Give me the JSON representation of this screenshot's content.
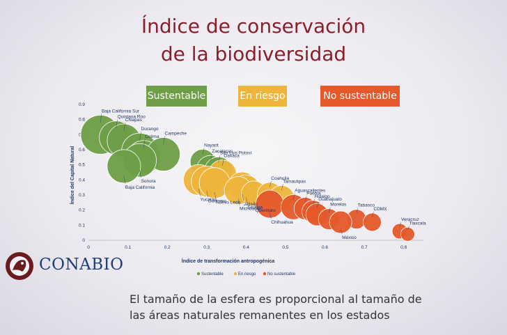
{
  "title_line1": "Índice de conservación",
  "title_line2": "de la biodiversidad",
  "categories": {
    "sustentable": "Sustentable",
    "en_riesgo": "En riesgo",
    "no_sustentable": "No sustentable"
  },
  "colors": {
    "sustentable": "#6e9e47",
    "en_riesgo": "#efb53b",
    "no_sustentable": "#e5592a",
    "title": "#8a1f2c"
  },
  "logo_text": "CONABIO",
  "caption_line1": "El tamaño de la esfera es proporcional al tamaño de",
  "caption_line2": "las áreas naturales remanentes en los estados",
  "chart_data": {
    "type": "scatter",
    "xlabel": "Índice de transformación antropogénica",
    "ylabel": "Índice del Capital Natural",
    "xlim": [
      0,
      0.85
    ],
    "ylim": [
      0,
      0.9
    ],
    "x_ticks": [
      "0",
      "0.1",
      "0.2",
      "0.3",
      "0.4",
      "0.5",
      "0.6",
      "0.7",
      "0.8"
    ],
    "y_ticks": [
      "0",
      "0.1",
      "0.2",
      "0.3",
      "0.4",
      "0.5",
      "0.6",
      "0.7",
      "0.8",
      "0.9"
    ],
    "legend": [
      "Sustentable",
      "En riesgo",
      "No sustentable"
    ],
    "legend_position": "bottom",
    "points": [
      {
        "label": "Baja California Sur",
        "x": 0.03,
        "y": 0.7,
        "size": 28,
        "category": "sustentable"
      },
      {
        "label": "Quintana Roo",
        "x": 0.07,
        "y": 0.68,
        "size": 24,
        "category": "sustentable"
      },
      {
        "label": "Chiapas",
        "x": 0.09,
        "y": 0.66,
        "size": 24,
        "category": "sustentable"
      },
      {
        "label": "Durango",
        "x": 0.13,
        "y": 0.59,
        "size": 26,
        "category": "sustentable"
      },
      {
        "label": "Colima",
        "x": 0.14,
        "y": 0.55,
        "size": 24,
        "category": "sustentable"
      },
      {
        "label": "Campeche",
        "x": 0.19,
        "y": 0.57,
        "size": 24,
        "category": "sustentable"
      },
      {
        "label": "Sonora",
        "x": 0.13,
        "y": 0.53,
        "size": 24,
        "category": "sustentable"
      },
      {
        "label": "Baja California",
        "x": 0.09,
        "y": 0.49,
        "size": 24,
        "category": "sustentable"
      },
      {
        "label": "Nayarit",
        "x": 0.29,
        "y": 0.52,
        "size": 18,
        "category": "sustentable"
      },
      {
        "label": "Zacatecas",
        "x": 0.31,
        "y": 0.47,
        "size": 20,
        "category": "sustentable"
      },
      {
        "label": "San Luis Potosí",
        "x": 0.33,
        "y": 0.46,
        "size": 20,
        "category": "sustentable"
      },
      {
        "label": "Oaxaca",
        "x": 0.34,
        "y": 0.44,
        "size": 20,
        "category": "en_riesgo"
      },
      {
        "label": "Yucatán",
        "x": 0.28,
        "y": 0.4,
        "size": 22,
        "category": "en_riesgo"
      },
      {
        "label": "Guerrero",
        "x": 0.3,
        "y": 0.39,
        "size": 22,
        "category": "en_riesgo"
      },
      {
        "label": "Nuevo León",
        "x": 0.32,
        "y": 0.38,
        "size": 22,
        "category": "en_riesgo"
      },
      {
        "label": "Jalisco",
        "x": 0.39,
        "y": 0.36,
        "size": 20,
        "category": "en_riesgo"
      },
      {
        "label": "Sinaloa",
        "x": 0.4,
        "y": 0.34,
        "size": 20,
        "category": "en_riesgo"
      },
      {
        "label": "Michoacán",
        "x": 0.38,
        "y": 0.33,
        "size": 20,
        "category": "en_riesgo"
      },
      {
        "label": "Querétaro",
        "x": 0.42,
        "y": 0.31,
        "size": 18,
        "category": "en_riesgo"
      },
      {
        "label": "Coahuila",
        "x": 0.46,
        "y": 0.3,
        "size": 18,
        "category": "en_riesgo"
      },
      {
        "label": "Tamaulipas",
        "x": 0.49,
        "y": 0.28,
        "size": 18,
        "category": "en_riesgo"
      },
      {
        "label": "Chihuahua",
        "x": 0.46,
        "y": 0.24,
        "size": 20,
        "category": "no_sustentable"
      },
      {
        "label": "Aguascalientes",
        "x": 0.52,
        "y": 0.22,
        "size": 18,
        "category": "no_sustentable"
      },
      {
        "label": "Puebla",
        "x": 0.55,
        "y": 0.21,
        "size": 16,
        "category": "no_sustentable"
      },
      {
        "label": "Hidalgo",
        "x": 0.57,
        "y": 0.19,
        "size": 16,
        "category": "no_sustentable"
      },
      {
        "label": "Guanajuato",
        "x": 0.58,
        "y": 0.17,
        "size": 16,
        "category": "no_sustentable"
      },
      {
        "label": "Morelos",
        "x": 0.61,
        "y": 0.14,
        "size": 15,
        "category": "no_sustentable"
      },
      {
        "label": "Tabasco",
        "x": 0.68,
        "y": 0.14,
        "size": 14,
        "category": "no_sustentable"
      },
      {
        "label": "CDMX",
        "x": 0.72,
        "y": 0.12,
        "size": 13,
        "category": "no_sustentable"
      },
      {
        "label": "México",
        "x": 0.64,
        "y": 0.12,
        "size": 16,
        "category": "no_sustentable"
      },
      {
        "label": "Veracruz",
        "x": 0.79,
        "y": 0.06,
        "size": 11,
        "category": "no_sustentable"
      },
      {
        "label": "Tlaxcala",
        "x": 0.81,
        "y": 0.04,
        "size": 10,
        "category": "no_sustentable"
      }
    ]
  }
}
